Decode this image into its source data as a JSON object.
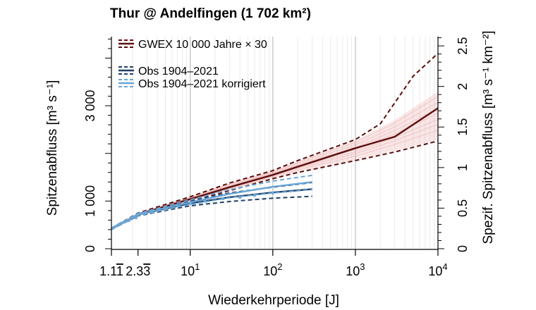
{
  "chart_data": {
    "type": "line",
    "title": "Thur @ Andelfingen (1 702 km²)",
    "xlabel": "Wiederkehrperiode [J]",
    "ylabel_left": "Spitzenabfluss [m³ s⁻¹]",
    "ylabel_right": "Spezif. Spitzenabfluss [m³ s⁻¹ km⁻²]",
    "x_scale": "log",
    "xlim": [
      1.1111,
      10000
    ],
    "ylim_left": [
      0,
      4450
    ],
    "ylim_right": [
      0,
      2.614
    ],
    "x_ticks": [
      {
        "value": 1.1111,
        "label": "1.1",
        "overline": "1"
      },
      {
        "value": 2.3333,
        "label": "2.3",
        "overline": "3"
      },
      {
        "value": 10,
        "label": "10",
        "sup": "1"
      },
      {
        "value": 100,
        "label": "10",
        "sup": "2"
      },
      {
        "value": 1000,
        "label": "10",
        "sup": "3"
      },
      {
        "value": 10000,
        "label": "10",
        "sup": "4"
      }
    ],
    "y_left_tick_labels": [
      {
        "value": 0,
        "label": "0"
      },
      {
        "value": 1000,
        "label": "1 000"
      },
      {
        "value": 3000,
        "label": "3 000"
      }
    ],
    "y_right_tick_labels": [
      {
        "value": 0,
        "label": "0"
      },
      {
        "value": 0.5,
        "label": "0.5"
      },
      {
        "value": 1,
        "label": "1"
      },
      {
        "value": 1.5,
        "label": "1.5"
      },
      {
        "value": 2,
        "label": "2"
      },
      {
        "value": 2.5,
        "label": "2.5"
      }
    ],
    "grid": "vertical minor grid",
    "legend": {
      "placement": "top-left",
      "entries": [
        {
          "label": "GWEX 10 000 Jahre × 30",
          "color": "#5c0f0f",
          "style": "solid-with-dashed"
        },
        {
          "label": "Obs 1904–2021",
          "color": "#1f3f66",
          "style": "solid-with-dashed"
        },
        {
          "label": "Obs 1904–2021 korrigiert",
          "color": "#6aa6d6",
          "style": "solid-with-dashed"
        }
      ]
    },
    "series": [
      {
        "name": "GWEX 10 000 Jahre × 30",
        "style": "median",
        "color": "#5c0f0f",
        "x": [
          1.1111,
          2.3333,
          10,
          30,
          100,
          200,
          1000,
          3000,
          10000
        ],
        "y": [
          420,
          720,
          1040,
          1290,
          1550,
          1720,
          2110,
          2350,
          2950
        ]
      },
      {
        "name": "GWEX upper bound",
        "style": "dashed",
        "color": "#5c0f0f",
        "x": [
          1.1111,
          2.3333,
          10,
          30,
          100,
          200,
          1000,
          2000,
          5000,
          10000
        ],
        "y": [
          430,
          750,
          1090,
          1380,
          1640,
          1850,
          2290,
          2620,
          3620,
          4100
        ]
      },
      {
        "name": "GWEX lower bound",
        "style": "dashed",
        "color": "#5c0f0f",
        "x": [
          1.1111,
          2.3333,
          10,
          30,
          100,
          200,
          1000,
          3000,
          10000
        ],
        "y": [
          410,
          700,
          990,
          1220,
          1470,
          1600,
          1850,
          2030,
          2260
        ]
      },
      {
        "name": "Obs 1904–2021",
        "style": "solid",
        "color": "#1f3f66",
        "x": [
          1.1111,
          2.3333,
          10,
          30,
          100,
          300
        ],
        "y": [
          420,
          715,
          950,
          1080,
          1180,
          1250
        ]
      },
      {
        "name": "Obs upper",
        "style": "dashed",
        "color": "#1f3f66",
        "x": [
          1.1111,
          2.3333,
          10,
          30,
          100,
          300
        ],
        "y": [
          430,
          745,
          1010,
          1170,
          1290,
          1390
        ]
      },
      {
        "name": "Obs lower",
        "style": "dashed",
        "color": "#1f3f66",
        "x": [
          1.1111,
          2.3333,
          10,
          30,
          100,
          300
        ],
        "y": [
          405,
          690,
          900,
          990,
          1060,
          1100
        ]
      },
      {
        "name": "Obs 1904–2021 korrigiert",
        "style": "solid",
        "color": "#6aa6d6",
        "x": [
          1.1111,
          2.3333,
          10,
          30,
          100,
          300
        ],
        "y": [
          420,
          720,
          975,
          1150,
          1300,
          1400
        ]
      },
      {
        "name": "Korrigiert upper",
        "style": "dashed",
        "color": "#6aa6d6",
        "x": [
          1.1111,
          2.3333,
          10,
          30,
          100,
          300
        ],
        "y": [
          430,
          740,
          1025,
          1240,
          1420,
          1540
        ]
      },
      {
        "name": "Korrigiert lower",
        "style": "dashed",
        "color": "#6aa6d6",
        "x": [
          1.1111,
          2.3333,
          10,
          30,
          100,
          300
        ],
        "y": [
          405,
          700,
          930,
          1070,
          1170,
          1240
        ]
      }
    ],
    "ensemble_band": {
      "color": "#e58c8c",
      "x": [
        1.1111,
        2.3333,
        10,
        30,
        100,
        200,
        1000,
        3000,
        10000
      ],
      "lower": [
        410,
        700,
        995,
        1225,
        1480,
        1610,
        1860,
        2060,
        2280
      ],
      "upper": [
        430,
        745,
        1085,
        1375,
        1630,
        1840,
        2270,
        2700,
        3300
      ]
    },
    "obs_points": {
      "color": "#6aa6d6",
      "x": [
        1.15,
        1.3,
        1.5,
        1.8,
        2.2,
        2.8,
        3.5,
        5,
        7,
        10,
        15,
        25,
        40,
        60,
        100
      ],
      "y": [
        430,
        480,
        540,
        590,
        650,
        720,
        760,
        830,
        900,
        950,
        1000,
        1050,
        1080,
        1120,
        1170
      ]
    }
  }
}
